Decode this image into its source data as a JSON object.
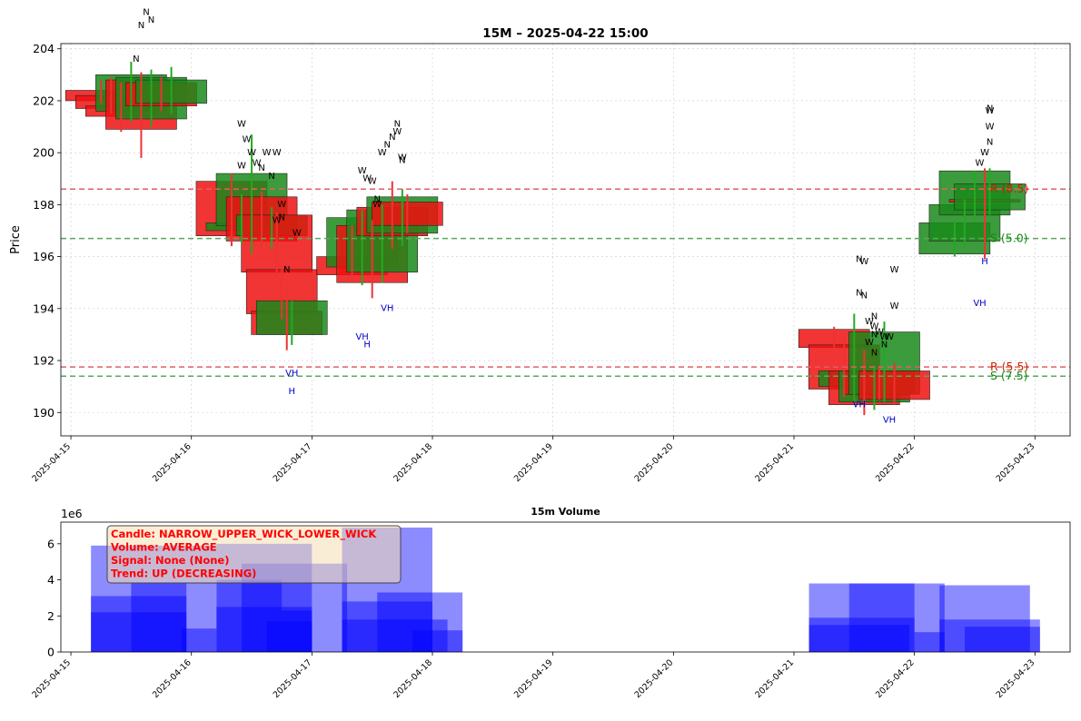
{
  "chart_data": [
    {
      "type": "candlestick",
      "title": "15M – 2025-04-22 15:00",
      "xlabel": "",
      "ylabel": "Price",
      "ylim": [
        189.1,
        204.2
      ],
      "xlim": [
        "2025-04-14 22:00",
        "2025-04-23 07:00"
      ],
      "yticks": [
        190,
        192,
        194,
        196,
        198,
        200,
        202,
        204
      ],
      "xticks": [
        "2025-04-15",
        "2025-04-16",
        "2025-04-17",
        "2025-04-18",
        "2025-04-19",
        "2025-04-20",
        "2025-04-21",
        "2025-04-22",
        "2025-04-23"
      ],
      "grid": true,
      "colors": {
        "up": "#1a8a1a",
        "down": "#ee1111",
        "resistance": "#e06060",
        "support": "#5aa85a",
        "annotation_blue": "#0000cc"
      },
      "levels": [
        {
          "label": "R (8.5)",
          "kind": "resistance",
          "value": 198.6
        },
        {
          "label": "S (5.0)",
          "kind": "support",
          "value": 196.7
        },
        {
          "label": "R (5.5)",
          "kind": "resistance",
          "value": 191.75
        },
        {
          "label": "S (7.5)",
          "kind": "support",
          "value": 191.4
        }
      ],
      "candles": [
        {
          "t": "2025-04-15 06:00",
          "o": 202.4,
          "h": 202.8,
          "l": 201.9,
          "c": 202.0
        },
        {
          "t": "2025-04-15 08:00",
          "o": 202.2,
          "h": 202.9,
          "l": 201.5,
          "c": 201.7
        },
        {
          "t": "2025-04-15 10:00",
          "o": 201.8,
          "h": 202.7,
          "l": 200.8,
          "c": 201.4
        },
        {
          "t": "2025-04-15 12:00",
          "o": 201.6,
          "h": 203.5,
          "l": 201.2,
          "c": 203.0
        },
        {
          "t": "2025-04-15 14:00",
          "o": 202.8,
          "h": 203.1,
          "l": 199.8,
          "c": 200.9
        },
        {
          "t": "2025-04-15 16:00",
          "o": 201.3,
          "h": 203.2,
          "l": 201.0,
          "c": 202.9
        },
        {
          "t": "2025-04-15 18:00",
          "o": 202.7,
          "h": 202.9,
          "l": 201.6,
          "c": 201.8
        },
        {
          "t": "2025-04-15 20:00",
          "o": 201.9,
          "h": 203.3,
          "l": 201.5,
          "c": 202.8
        },
        {
          "t": "2025-04-16 08:00",
          "o": 198.9,
          "h": 199.2,
          "l": 196.4,
          "c": 196.8
        },
        {
          "t": "2025-04-16 10:00",
          "o": 197.0,
          "h": 198.4,
          "l": 196.5,
          "c": 197.3
        },
        {
          "t": "2025-04-16 12:00",
          "o": 197.2,
          "h": 200.7,
          "l": 196.1,
          "c": 199.2
        },
        {
          "t": "2025-04-16 14:00",
          "o": 198.3,
          "h": 198.5,
          "l": 196.2,
          "c": 196.6
        },
        {
          "t": "2025-04-16 16:00",
          "o": 196.8,
          "h": 197.9,
          "l": 196.3,
          "c": 197.6
        },
        {
          "t": "2025-04-16 17:00",
          "o": 197.6,
          "h": 197.7,
          "l": 195.2,
          "c": 195.4
        },
        {
          "t": "2025-04-16 18:00",
          "o": 195.5,
          "h": 195.6,
          "l": 193.6,
          "c": 193.8
        },
        {
          "t": "2025-04-16 19:00",
          "o": 193.9,
          "h": 194.9,
          "l": 192.4,
          "c": 193.0
        },
        {
          "t": "2025-04-16 20:00",
          "o": 193.0,
          "h": 194.3,
          "l": 192.6,
          "c": 194.3
        },
        {
          "t": "2025-04-17 08:00",
          "o": 196.0,
          "h": 197.2,
          "l": 195.1,
          "c": 195.3
        },
        {
          "t": "2025-04-17 10:00",
          "o": 195.6,
          "h": 197.8,
          "l": 194.9,
          "c": 197.5
        },
        {
          "t": "2025-04-17 12:00",
          "o": 197.2,
          "h": 197.4,
          "l": 194.4,
          "c": 195.0
        },
        {
          "t": "2025-04-17 14:00",
          "o": 195.4,
          "h": 198.0,
          "l": 195.0,
          "c": 197.8
        },
        {
          "t": "2025-04-17 16:00",
          "o": 197.9,
          "h": 198.9,
          "l": 196.3,
          "c": 196.8
        },
        {
          "t": "2025-04-17 18:00",
          "o": 196.9,
          "h": 198.6,
          "l": 196.4,
          "c": 198.3
        },
        {
          "t": "2025-04-17 19:00",
          "o": 198.1,
          "h": 198.4,
          "l": 196.9,
          "c": 197.2
        },
        {
          "t": "2025-04-21 08:00",
          "o": 193.2,
          "h": 193.3,
          "l": 192.5,
          "c": 192.5
        },
        {
          "t": "2025-04-21 10:00",
          "o": 192.6,
          "h": 192.8,
          "l": 190.6,
          "c": 190.9
        },
        {
          "t": "2025-04-21 12:00",
          "o": 191.0,
          "h": 193.8,
          "l": 190.4,
          "c": 191.6
        },
        {
          "t": "2025-04-21 14:00",
          "o": 191.6,
          "h": 192.4,
          "l": 189.9,
          "c": 190.3
        },
        {
          "t": "2025-04-21 16:00",
          "o": 190.4,
          "h": 191.8,
          "l": 190.1,
          "c": 191.6
        },
        {
          "t": "2025-04-21 17:00",
          "o": 191.6,
          "h": 191.8,
          "l": 190.5,
          "c": 190.7
        },
        {
          "t": "2025-04-21 18:00",
          "o": 190.7,
          "h": 193.5,
          "l": 190.4,
          "c": 193.1
        },
        {
          "t": "2025-04-21 20:00",
          "o": 191.6,
          "h": 191.9,
          "l": 190.3,
          "c": 190.5
        },
        {
          "t": "2025-04-22 08:00",
          "o": 196.1,
          "h": 197.4,
          "l": 196.0,
          "c": 197.3
        },
        {
          "t": "2025-04-22 10:00",
          "o": 196.6,
          "h": 198.2,
          "l": 196.4,
          "c": 198.0
        },
        {
          "t": "2025-04-22 12:00",
          "o": 197.6,
          "h": 199.3,
          "l": 197.4,
          "c": 199.3
        },
        {
          "t": "2025-04-22 14:00",
          "o": 198.2,
          "h": 199.4,
          "l": 195.9,
          "c": 198.1
        },
        {
          "t": "2025-04-22 15:00",
          "o": 197.8,
          "h": 199.4,
          "l": 197.6,
          "c": 198.8
        }
      ],
      "annotations": [
        {
          "text": "N",
          "t": "2025-04-15 13:00",
          "y": 203.5,
          "color": "black"
        },
        {
          "text": "N",
          "t": "2025-04-15 14:00",
          "y": 204.8,
          "color": "black"
        },
        {
          "text": "N",
          "t": "2025-04-15 15:00",
          "y": 205.3,
          "color": "black"
        },
        {
          "text": "N",
          "t": "2025-04-15 16:00",
          "y": 205.0,
          "color": "black"
        },
        {
          "text": "W",
          "t": "2025-04-16 10:00",
          "y": 201.0,
          "color": "black"
        },
        {
          "text": "W",
          "t": "2025-04-16 11:00",
          "y": 200.4,
          "color": "black"
        },
        {
          "text": "W",
          "t": "2025-04-16 12:00",
          "y": 199.9,
          "color": "black"
        },
        {
          "text": "W",
          "t": "2025-04-16 13:00",
          "y": 199.5,
          "color": "black"
        },
        {
          "text": "W",
          "t": "2025-04-16 10:00",
          "y": 199.4,
          "color": "black"
        },
        {
          "text": "N",
          "t": "2025-04-16 14:00",
          "y": 199.3,
          "color": "black"
        },
        {
          "text": "W",
          "t": "2025-04-16 15:00",
          "y": 199.9,
          "color": "black"
        },
        {
          "text": "W",
          "t": "2025-04-16 17:00",
          "y": 199.9,
          "color": "black"
        },
        {
          "text": "N",
          "t": "2025-04-16 16:00",
          "y": 199.0,
          "color": "black"
        },
        {
          "text": "W",
          "t": "2025-04-16 18:00",
          "y": 197.9,
          "color": "black"
        },
        {
          "text": "W",
          "t": "2025-04-16 17:00",
          "y": 197.3,
          "color": "black"
        },
        {
          "text": "N",
          "t": "2025-04-16 18:00",
          "y": 197.4,
          "color": "black"
        },
        {
          "text": "W",
          "t": "2025-04-16 21:00",
          "y": 196.8,
          "color": "black"
        },
        {
          "text": "N",
          "t": "2025-04-16 19:00",
          "y": 195.4,
          "color": "black"
        },
        {
          "text": "VH",
          "t": "2025-04-16 20:00",
          "y": 191.4,
          "color": "blue"
        },
        {
          "text": "H",
          "t": "2025-04-16 20:00",
          "y": 190.7,
          "color": "blue"
        },
        {
          "text": "W",
          "t": "2025-04-17 10:00",
          "y": 199.2,
          "color": "black"
        },
        {
          "text": "W",
          "t": "2025-04-17 11:00",
          "y": 198.9,
          "color": "black"
        },
        {
          "text": "W",
          "t": "2025-04-17 12:00",
          "y": 198.8,
          "color": "black"
        },
        {
          "text": "N",
          "t": "2025-04-17 13:00",
          "y": 198.1,
          "color": "black"
        },
        {
          "text": "W",
          "t": "2025-04-17 13:00",
          "y": 197.9,
          "color": "black"
        },
        {
          "text": "W",
          "t": "2025-04-17 14:00",
          "y": 199.9,
          "color": "black"
        },
        {
          "text": "N",
          "t": "2025-04-17 15:00",
          "y": 200.2,
          "color": "black"
        },
        {
          "text": "N",
          "t": "2025-04-17 16:00",
          "y": 200.5,
          "color": "black"
        },
        {
          "text": "N",
          "t": "2025-04-17 17:00",
          "y": 201.0,
          "color": "black"
        },
        {
          "text": "W",
          "t": "2025-04-17 17:00",
          "y": 200.7,
          "color": "black"
        },
        {
          "text": "N",
          "t": "2025-04-17 18:00",
          "y": 199.6,
          "color": "black"
        },
        {
          "text": "W",
          "t": "2025-04-17 18:00",
          "y": 199.7,
          "color": "black"
        },
        {
          "text": "VH",
          "t": "2025-04-17 15:00",
          "y": 193.9,
          "color": "blue"
        },
        {
          "text": "VH",
          "t": "2025-04-17 10:00",
          "y": 192.8,
          "color": "blue"
        },
        {
          "text": "H",
          "t": "2025-04-17 11:00",
          "y": 192.5,
          "color": "blue"
        },
        {
          "text": "N",
          "t": "2025-04-21 13:00",
          "y": 195.8,
          "color": "black"
        },
        {
          "text": "W",
          "t": "2025-04-21 14:00",
          "y": 195.7,
          "color": "black"
        },
        {
          "text": "W",
          "t": "2025-04-21 20:00",
          "y": 195.4,
          "color": "black"
        },
        {
          "text": "N",
          "t": "2025-04-21 13:00",
          "y": 194.5,
          "color": "black"
        },
        {
          "text": "N",
          "t": "2025-04-21 14:00",
          "y": 194.4,
          "color": "black"
        },
        {
          "text": "W",
          "t": "2025-04-21 20:00",
          "y": 194.0,
          "color": "black"
        },
        {
          "text": "N",
          "t": "2025-04-21 16:00",
          "y": 193.6,
          "color": "black"
        },
        {
          "text": "W",
          "t": "2025-04-21 15:00",
          "y": 193.4,
          "color": "black"
        },
        {
          "text": "W",
          "t": "2025-04-21 16:00",
          "y": 193.2,
          "color": "black"
        },
        {
          "text": "W",
          "t": "2025-04-21 17:00",
          "y": 193.0,
          "color": "black"
        },
        {
          "text": "N",
          "t": "2025-04-21 16:00",
          "y": 192.9,
          "color": "black"
        },
        {
          "text": "W",
          "t": "2025-04-21 18:00",
          "y": 192.8,
          "color": "black"
        },
        {
          "text": "W",
          "t": "2025-04-21 19:00",
          "y": 192.8,
          "color": "black"
        },
        {
          "text": "W",
          "t": "2025-04-21 15:00",
          "y": 192.6,
          "color": "black"
        },
        {
          "text": "N",
          "t": "2025-04-21 18:00",
          "y": 192.5,
          "color": "black"
        },
        {
          "text": "N",
          "t": "2025-04-21 16:00",
          "y": 192.2,
          "color": "black"
        },
        {
          "text": "VH",
          "t": "2025-04-21 13:00",
          "y": 190.2,
          "color": "blue"
        },
        {
          "text": "VH",
          "t": "2025-04-21 19:00",
          "y": 189.6,
          "color": "blue"
        },
        {
          "text": "N",
          "t": "2025-04-22 15:00",
          "y": 201.6,
          "color": "black"
        },
        {
          "text": "W",
          "t": "2025-04-22 15:00",
          "y": 201.5,
          "color": "black"
        },
        {
          "text": "W",
          "t": "2025-04-22 15:00",
          "y": 200.9,
          "color": "black"
        },
        {
          "text": "N",
          "t": "2025-04-22 15:00",
          "y": 200.3,
          "color": "black"
        },
        {
          "text": "W",
          "t": "2025-04-22 14:00",
          "y": 199.9,
          "color": "black"
        },
        {
          "text": "W",
          "t": "2025-04-22 13:00",
          "y": 199.5,
          "color": "black"
        },
        {
          "text": "H",
          "t": "2025-04-22 14:00",
          "y": 195.7,
          "color": "blue"
        },
        {
          "text": "VH",
          "t": "2025-04-22 13:00",
          "y": 194.1,
          "color": "blue"
        }
      ]
    },
    {
      "type": "bar",
      "title": "15m Volume",
      "xlabel": "",
      "ylabel": "",
      "scale_label": "1e6",
      "ylim": [
        0,
        7.2
      ],
      "yticks": [
        0,
        2,
        4,
        6
      ],
      "xticks": [
        "2025-04-15",
        "2025-04-16",
        "2025-04-17",
        "2025-04-18",
        "2025-04-19",
        "2025-04-20",
        "2025-04-21",
        "2025-04-22",
        "2025-04-23"
      ],
      "xlim": [
        "2025-04-14 22:00",
        "2025-04-23 07:00"
      ],
      "bars": [
        {
          "t0": "2025-04-15 04:00",
          "t1": "2025-04-16 05:00",
          "v": 5.9
        },
        {
          "t0": "2025-04-15 04:00",
          "t1": "2025-04-15 23:00",
          "v": 3.1
        },
        {
          "t0": "2025-04-15 04:00",
          "t1": "2025-04-15 23:00",
          "v": 2.2
        },
        {
          "t0": "2025-04-15 12:00",
          "t1": "2025-04-15 23:00",
          "v": 3.8
        },
        {
          "t0": "2025-04-15 22:00",
          "t1": "2025-04-16 05:00",
          "v": 1.3
        },
        {
          "t0": "2025-04-16 05:00",
          "t1": "2025-04-17 00:00",
          "v": 6.0
        },
        {
          "t0": "2025-04-16 05:00",
          "t1": "2025-04-16 18:00",
          "v": 4.0
        },
        {
          "t0": "2025-04-16 05:00",
          "t1": "2025-04-17 00:00",
          "v": 2.5
        },
        {
          "t0": "2025-04-16 10:00",
          "t1": "2025-04-17 00:00",
          "v": 4.9
        },
        {
          "t0": "2025-04-16 15:00",
          "t1": "2025-04-17 00:00",
          "v": 1.7
        },
        {
          "t0": "2025-04-16 18:00",
          "t1": "2025-04-17 00:00",
          "v": 2.3
        },
        {
          "t0": "2025-04-17 00:00",
          "t1": "2025-04-17 07:00",
          "v": 4.9
        },
        {
          "t0": "2025-04-17 06:00",
          "t1": "2025-04-18 00:00",
          "v": 6.9
        },
        {
          "t0": "2025-04-17 06:00",
          "t1": "2025-04-18 00:00",
          "v": 2.8
        },
        {
          "t0": "2025-04-17 06:00",
          "t1": "2025-04-18 03:00",
          "v": 1.8
        },
        {
          "t0": "2025-04-17 13:00",
          "t1": "2025-04-18 06:00",
          "v": 3.3
        },
        {
          "t0": "2025-04-17 20:00",
          "t1": "2025-04-18 06:00",
          "v": 1.2
        },
        {
          "t0": "2025-04-21 03:00",
          "t1": "2025-04-22 06:00",
          "v": 3.8
        },
        {
          "t0": "2025-04-21 03:00",
          "t1": "2025-04-22 00:00",
          "v": 1.9
        },
        {
          "t0": "2025-04-21 03:00",
          "t1": "2025-04-21 23:00",
          "v": 1.5
        },
        {
          "t0": "2025-04-21 11:00",
          "t1": "2025-04-22 00:00",
          "v": 3.8
        },
        {
          "t0": "2025-04-22 00:00",
          "t1": "2025-04-22 06:00",
          "v": 1.1
        },
        {
          "t0": "2025-04-22 05:00",
          "t1": "2025-04-22 23:00",
          "v": 3.7
        },
        {
          "t0": "2025-04-22 05:00",
          "t1": "2025-04-23 01:00",
          "v": 1.8
        },
        {
          "t0": "2025-04-22 10:00",
          "t1": "2025-04-23 01:00",
          "v": 1.4
        }
      ]
    }
  ],
  "info_box": {
    "lines": [
      "Candle: NARROW_UPPER_WICK_LOWER_WICK",
      "Volume: AVERAGE",
      "Signal: None (None)",
      "Trend: UP (DECREASING)"
    ]
  }
}
